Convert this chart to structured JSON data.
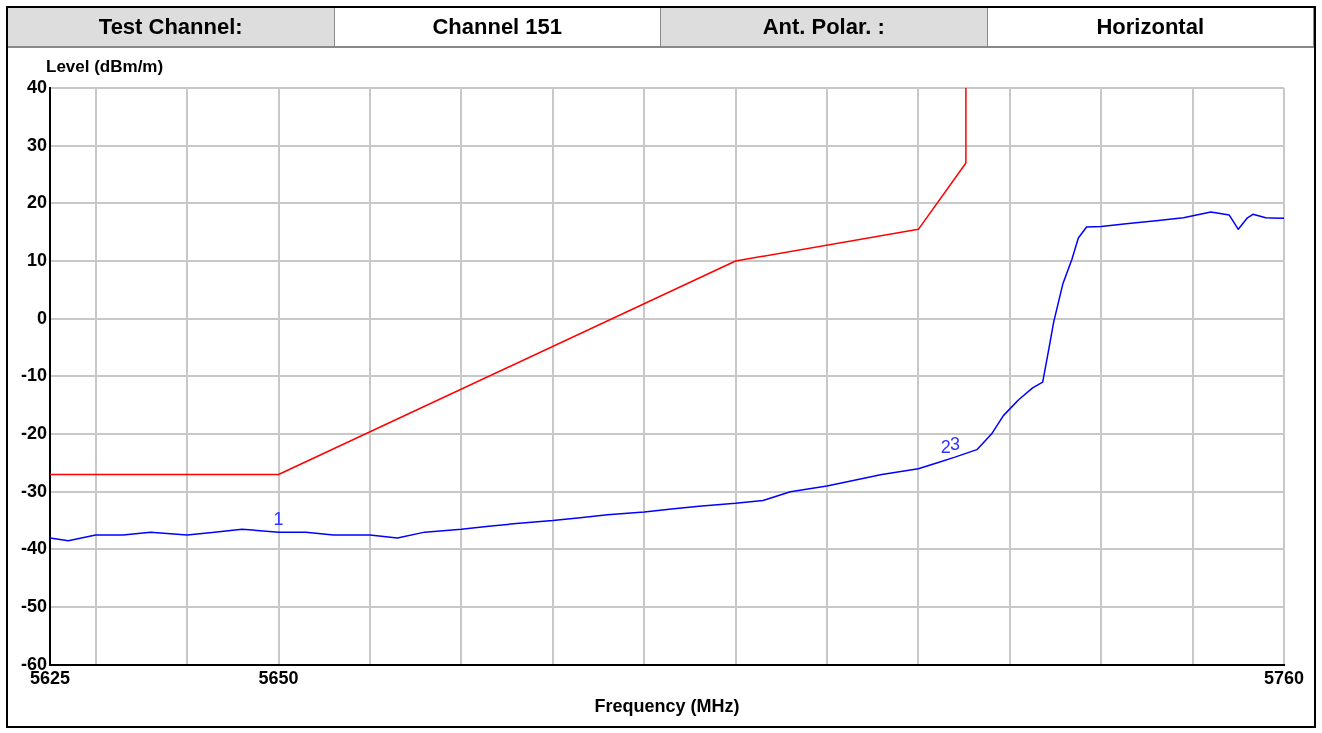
{
  "chart_data": {
    "type": "line",
    "xlabel": "Frequency (MHz)",
    "ylabel": "Level (dBm/m)",
    "annotations": [
      "Test Channel:",
      "Channel 151",
      "Ant. Polar. :",
      "Horizontal",
      {
        "text": "1",
        "x": 5650,
        "y": -37
      },
      {
        "text": "2",
        "x": 5723,
        "y": -24.5
      },
      {
        "text": "3",
        "x": 5724,
        "y": -24
      }
    ],
    "xlim": [
      5625,
      5760
    ],
    "ylim": [
      -60,
      40
    ],
    "xticks": [
      5625,
      {
        "value": 5630,
        "label": null
      },
      {
        "value": 5640,
        "label": null
      },
      5650,
      {
        "value": 5660,
        "label": null
      },
      {
        "value": 5670,
        "label": null
      },
      {
        "value": 5680,
        "label": null
      },
      {
        "value": 5690,
        "label": null
      },
      {
        "value": 5700,
        "label": null
      },
      {
        "value": 5710,
        "label": null
      },
      {
        "value": 5720,
        "label": null
      },
      {
        "value": 5730,
        "label": null
      },
      {
        "value": 5740,
        "label": null
      },
      {
        "value": 5750,
        "label": null
      },
      5760
    ],
    "yticks": [
      -60,
      -50,
      -40,
      -30,
      -20,
      -10,
      0,
      10,
      20,
      30,
      40
    ],
    "grid": true,
    "legend": false,
    "marker": "none",
    "line_style": "solid",
    "series": [
      {
        "color": "#ff0000",
        "x": [
          5625,
          5650,
          5700,
          5720,
          5725.2,
          5725.2
        ],
        "values": [
          -27,
          -27,
          10,
          15.5,
          27,
          40
        ]
      },
      {
        "color": "#0000ff",
        "x": [
          5625,
          5627,
          5630,
          5633,
          5636,
          5640,
          5643,
          5646,
          5650,
          5653,
          5656,
          5660,
          5663,
          5666,
          5670,
          5673,
          5676,
          5680,
          5683,
          5686,
          5690,
          5693,
          5696,
          5700,
          5703,
          5706,
          5710,
          5713,
          5716,
          5720,
          5722,
          5724,
          5726.4,
          5728,
          5729.3,
          5731,
          5732.5,
          5733.6,
          5734.3,
          5734.8,
          5735.8,
          5736.8,
          5737.5,
          5738.4,
          5740,
          5743,
          5746,
          5749,
          5752,
          5754,
          5755,
          5756,
          5756.6,
          5758,
          5760
        ],
        "values": [
          -38,
          -38.5,
          -37.5,
          -37.5,
          -37,
          -37.5,
          -37,
          -36.5,
          -37,
          -37,
          -37.5,
          -37.5,
          -38,
          -37,
          -36.5,
          -36,
          -35.5,
          -35,
          -34.5,
          -34,
          -33.5,
          -33,
          -32.5,
          -32,
          -31.5,
          -30,
          -29,
          -28,
          -27,
          -26,
          -25,
          -24,
          -22.7,
          -20,
          -16.8,
          -14,
          -12,
          -11,
          -5,
          -0.6,
          6,
          10.3,
          14,
          15.9,
          16,
          16.5,
          17,
          17.5,
          18.5,
          18,
          15.5,
          17.5,
          18.1,
          17.5,
          17.4
        ]
      }
    ]
  }
}
